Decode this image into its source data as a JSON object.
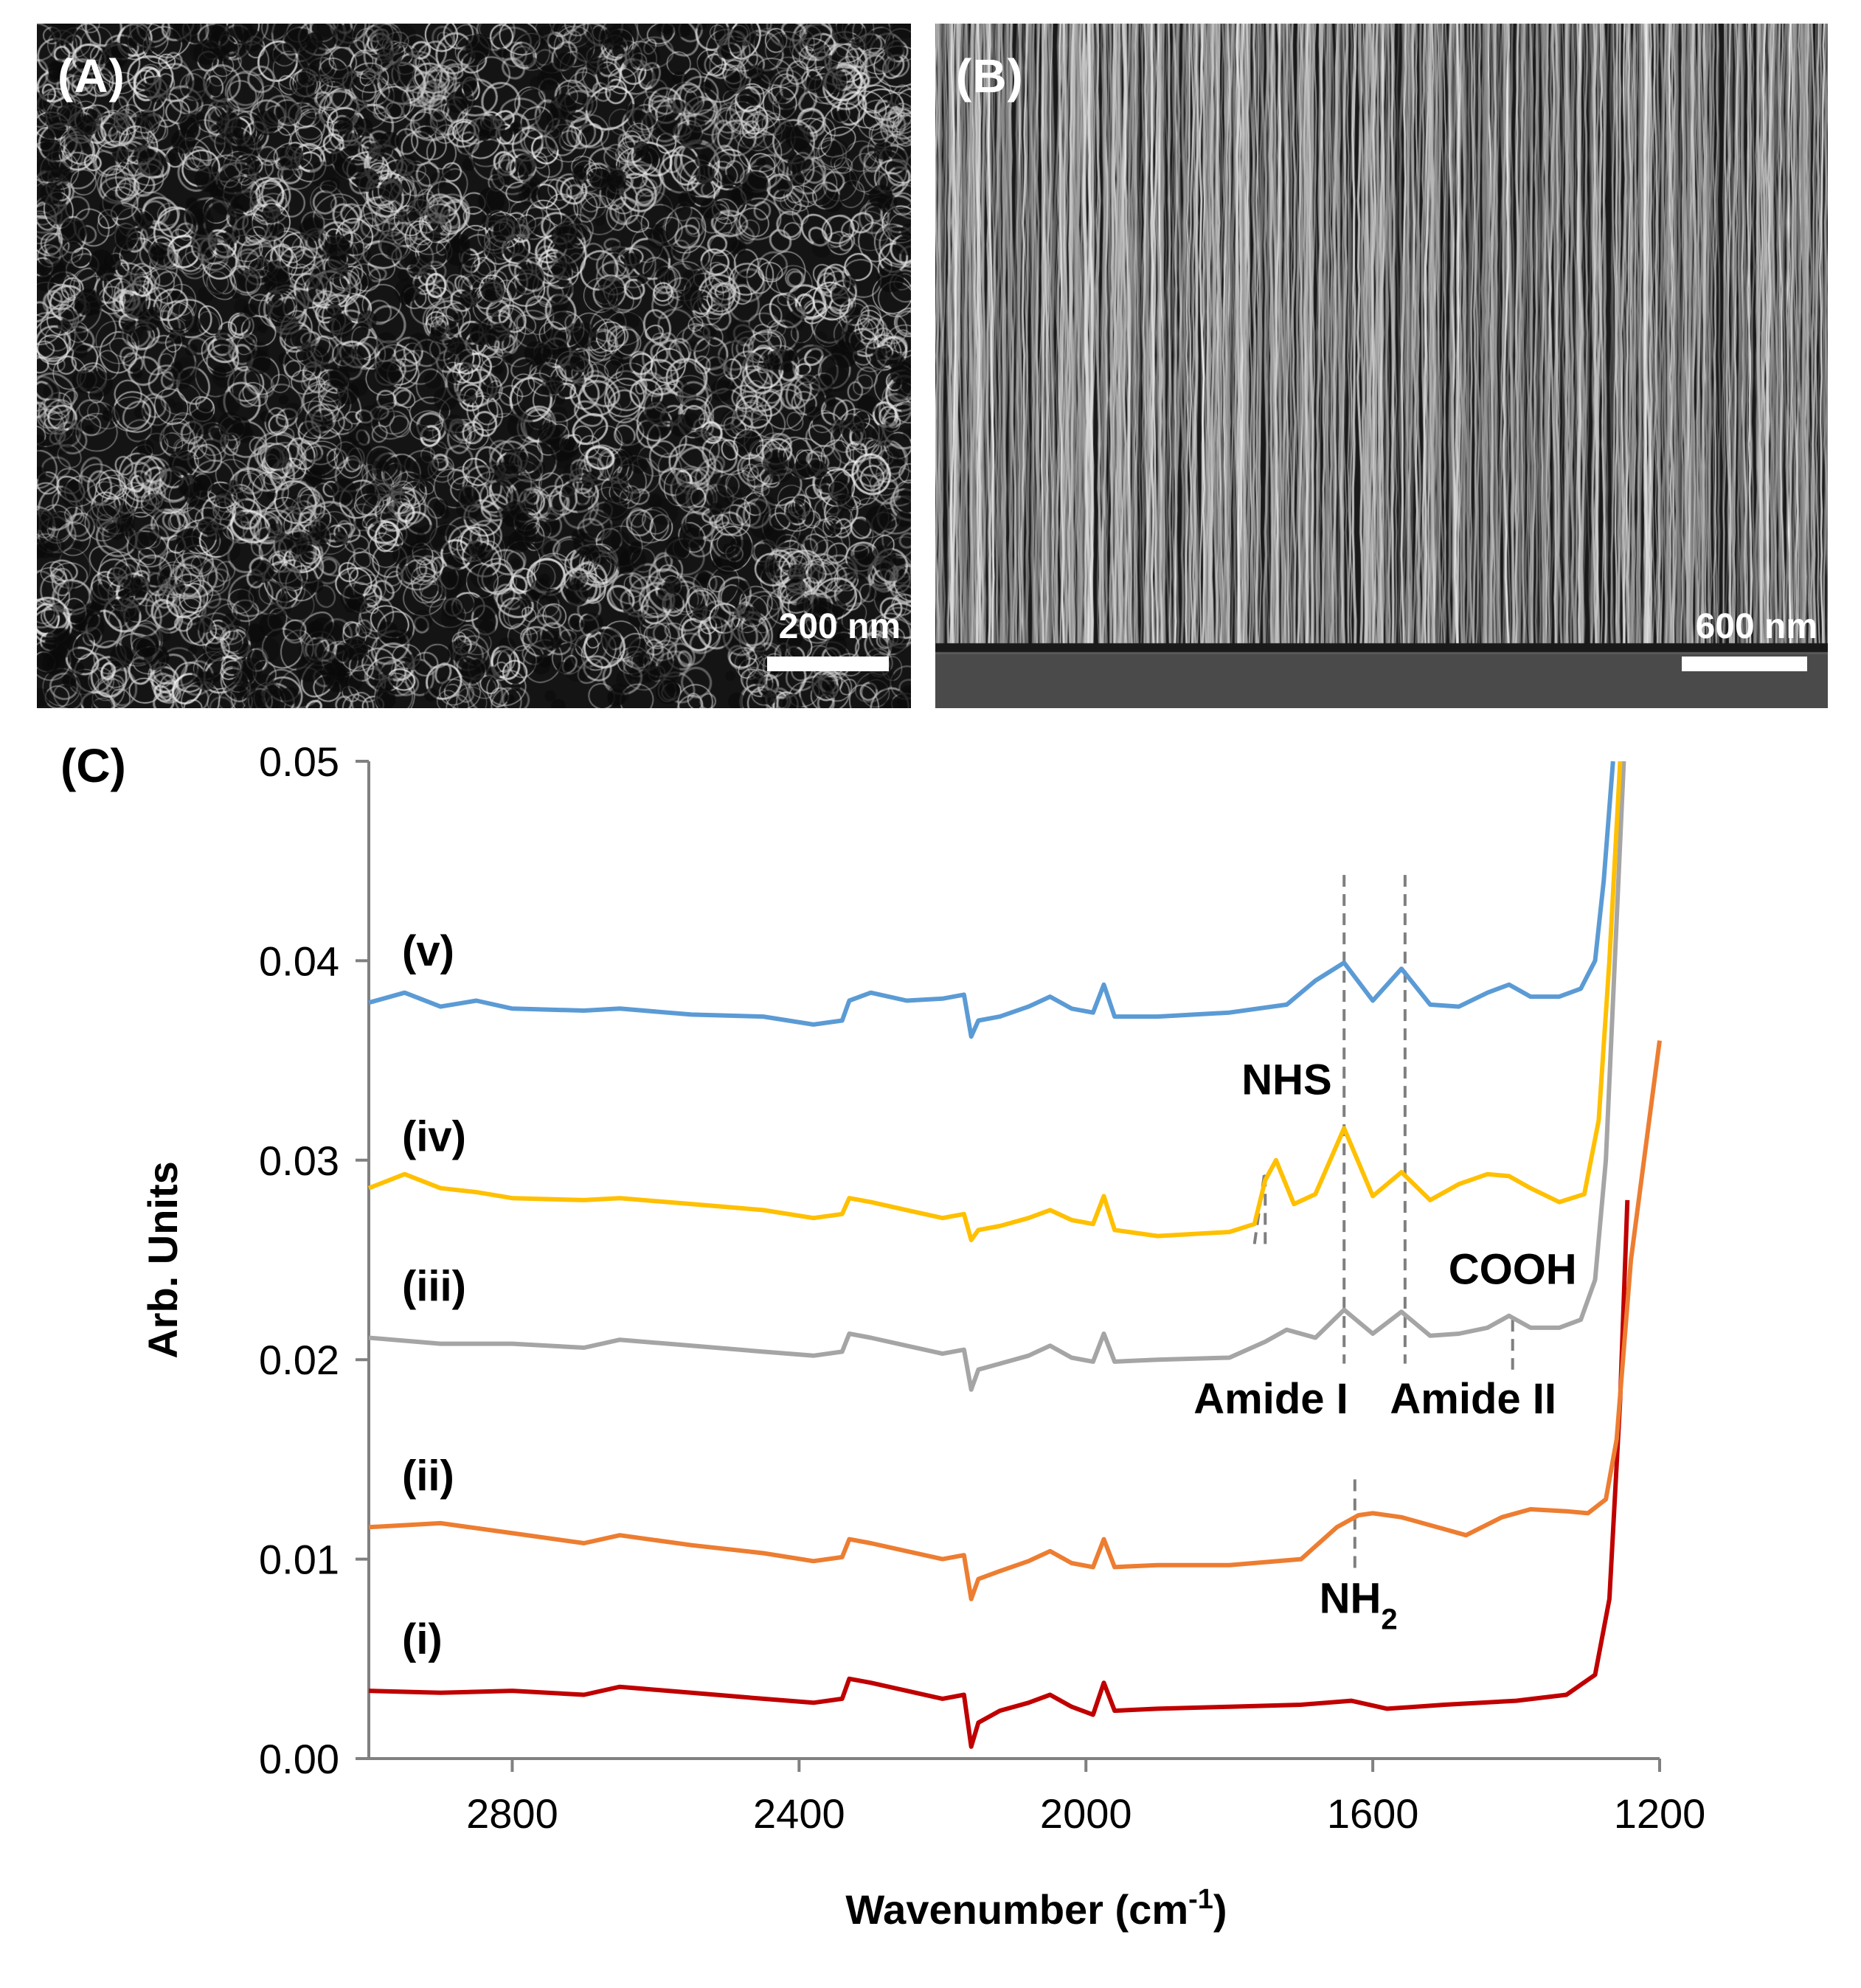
{
  "panels": {
    "a": {
      "letter": "(A)",
      "scale_label": "200 nm"
    },
    "b": {
      "letter": "(B)",
      "scale_label": "600 nm"
    },
    "c": {
      "letter": "(C)"
    }
  },
  "chart_data": {
    "type": "line",
    "xlabel": "Wavenumber (cm-1)",
    "ylabel": "Arb. Units",
    "xlim": [
      3000,
      1200
    ],
    "ylim": [
      0.0,
      0.05
    ],
    "x_reversed": true,
    "xticks": [
      2800,
      2400,
      2000,
      1600,
      1200
    ],
    "xtick_labels": [
      "2800",
      "2400",
      "2000",
      "1600",
      "1200"
    ],
    "yticks": [
      0.0,
      0.01,
      0.02,
      0.03,
      0.04,
      0.05
    ],
    "ytick_labels": [
      "0.00",
      "0.01",
      "0.02",
      "0.03",
      "0.04",
      "0.05"
    ],
    "grid": false,
    "series": [
      {
        "name": "(i)",
        "color": "#c00000",
        "x": [
          3000,
          2900,
          2800,
          2700,
          2650,
          2550,
          2450,
          2380,
          2340,
          2330,
          2300,
          2250,
          2200,
          2170,
          2160,
          2150,
          2120,
          2080,
          2050,
          2020,
          1990,
          1975,
          1960,
          1900,
          1800,
          1700,
          1630,
          1580,
          1500,
          1400,
          1330,
          1290,
          1270,
          1255,
          1245
        ],
        "y": [
          0.0034,
          0.0033,
          0.0034,
          0.0032,
          0.0036,
          0.0033,
          0.003,
          0.0028,
          0.003,
          0.004,
          0.0038,
          0.0034,
          0.003,
          0.0032,
          0.0006,
          0.0018,
          0.0024,
          0.0028,
          0.0032,
          0.0026,
          0.0022,
          0.0038,
          0.0024,
          0.0025,
          0.0026,
          0.0027,
          0.0029,
          0.0025,
          0.0027,
          0.0029,
          0.0032,
          0.0042,
          0.008,
          0.018,
          0.028
        ]
      },
      {
        "name": "(ii)",
        "color": "#ed7d31",
        "x": [
          3000,
          2900,
          2800,
          2700,
          2650,
          2550,
          2450,
          2380,
          2340,
          2330,
          2300,
          2250,
          2200,
          2170,
          2160,
          2150,
          2120,
          2080,
          2050,
          2020,
          1990,
          1975,
          1960,
          1900,
          1800,
          1700,
          1650,
          1620,
          1600,
          1560,
          1520,
          1500,
          1470,
          1420,
          1380,
          1330,
          1300,
          1275,
          1260,
          1240,
          1200
        ],
        "y": [
          0.0116,
          0.0118,
          0.0113,
          0.0108,
          0.0112,
          0.0107,
          0.0103,
          0.0099,
          0.0101,
          0.011,
          0.0108,
          0.0104,
          0.01,
          0.0102,
          0.008,
          0.009,
          0.0094,
          0.0099,
          0.0104,
          0.0098,
          0.0096,
          0.011,
          0.0096,
          0.0097,
          0.0097,
          0.01,
          0.0116,
          0.0122,
          0.0123,
          0.0121,
          0.0117,
          0.0115,
          0.0112,
          0.0121,
          0.0125,
          0.0124,
          0.0123,
          0.013,
          0.016,
          0.025,
          0.036
        ]
      },
      {
        "name": "(iii)",
        "color": "#a5a5a5",
        "x": [
          3000,
          2900,
          2800,
          2700,
          2650,
          2550,
          2450,
          2380,
          2340,
          2330,
          2300,
          2250,
          2200,
          2170,
          2160,
          2150,
          2120,
          2080,
          2050,
          2020,
          1990,
          1975,
          1960,
          1900,
          1800,
          1750,
          1720,
          1680,
          1640,
          1600,
          1560,
          1520,
          1480,
          1440,
          1410,
          1380,
          1340,
          1310,
          1290,
          1275,
          1265,
          1250
        ],
        "y": [
          0.0211,
          0.0208,
          0.0208,
          0.0206,
          0.021,
          0.0207,
          0.0204,
          0.0202,
          0.0204,
          0.0213,
          0.0211,
          0.0207,
          0.0203,
          0.0205,
          0.0185,
          0.0195,
          0.0198,
          0.0202,
          0.0207,
          0.0201,
          0.0199,
          0.0213,
          0.0199,
          0.02,
          0.0201,
          0.0209,
          0.0215,
          0.0211,
          0.0225,
          0.0213,
          0.0224,
          0.0212,
          0.0213,
          0.0216,
          0.0222,
          0.0216,
          0.0216,
          0.022,
          0.024,
          0.03,
          0.038,
          0.05
        ]
      },
      {
        "name": "(iv)",
        "color": "#ffc000",
        "x": [
          3000,
          2950,
          2900,
          2850,
          2800,
          2700,
          2650,
          2550,
          2450,
          2380,
          2340,
          2330,
          2300,
          2250,
          2200,
          2170,
          2160,
          2150,
          2120,
          2080,
          2050,
          2020,
          1990,
          1975,
          1960,
          1900,
          1800,
          1765,
          1750,
          1735,
          1710,
          1680,
          1640,
          1600,
          1560,
          1520,
          1480,
          1440,
          1410,
          1380,
          1340,
          1305,
          1285,
          1270,
          1255
        ],
        "y": [
          0.0286,
          0.0293,
          0.0286,
          0.0284,
          0.0281,
          0.028,
          0.0281,
          0.0278,
          0.0275,
          0.0271,
          0.0273,
          0.0281,
          0.0279,
          0.0275,
          0.0271,
          0.0273,
          0.026,
          0.0265,
          0.0267,
          0.0271,
          0.0275,
          0.027,
          0.0268,
          0.0282,
          0.0265,
          0.0262,
          0.0264,
          0.0268,
          0.029,
          0.03,
          0.0278,
          0.0283,
          0.0316,
          0.0282,
          0.0294,
          0.028,
          0.0288,
          0.0293,
          0.0292,
          0.0286,
          0.0279,
          0.0283,
          0.032,
          0.04,
          0.05
        ]
      },
      {
        "name": "(v)",
        "color": "#5b9bd5",
        "x": [
          3000,
          2950,
          2900,
          2850,
          2800,
          2700,
          2650,
          2550,
          2450,
          2380,
          2340,
          2330,
          2300,
          2250,
          2200,
          2170,
          2160,
          2150,
          2120,
          2080,
          2050,
          2020,
          1990,
          1975,
          1960,
          1900,
          1800,
          1720,
          1680,
          1640,
          1600,
          1560,
          1520,
          1480,
          1440,
          1410,
          1380,
          1340,
          1310,
          1290,
          1278,
          1265
        ],
        "y": [
          0.0379,
          0.0384,
          0.0377,
          0.038,
          0.0376,
          0.0375,
          0.0376,
          0.0373,
          0.0372,
          0.0368,
          0.037,
          0.038,
          0.0384,
          0.038,
          0.0381,
          0.0383,
          0.0362,
          0.037,
          0.0372,
          0.0377,
          0.0382,
          0.0376,
          0.0374,
          0.0388,
          0.0372,
          0.0372,
          0.0374,
          0.0378,
          0.039,
          0.0399,
          0.038,
          0.0396,
          0.0378,
          0.0377,
          0.0384,
          0.0388,
          0.0382,
          0.0382,
          0.0386,
          0.04,
          0.044,
          0.05
        ]
      }
    ],
    "annotations": [
      {
        "id": "nhs",
        "text": "NHS",
        "lines": [
          1765,
          1750
        ]
      },
      {
        "id": "amide1",
        "text": "Amide I",
        "lines": [
          1640
        ]
      },
      {
        "id": "amide2",
        "text": "Amide II",
        "lines": [
          1555
        ]
      },
      {
        "id": "cooh",
        "text": "COOH",
        "lines": [
          1405
        ]
      },
      {
        "id": "nh2",
        "text": "NH",
        "subscript": "2",
        "lines": [
          1625
        ]
      }
    ]
  }
}
